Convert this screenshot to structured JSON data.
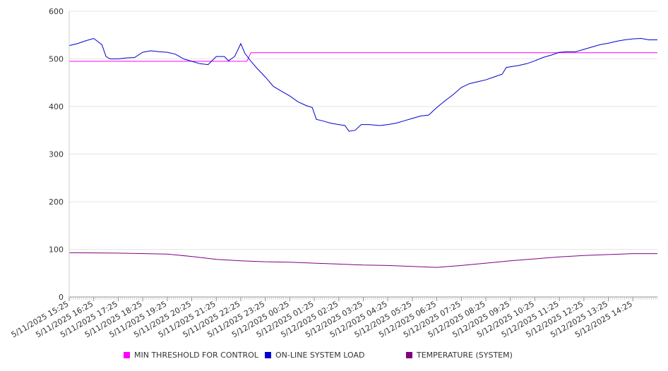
{
  "chart_data": {
    "type": "line",
    "title": "",
    "xlabel": "",
    "ylabel": "",
    "ylim": [
      0,
      600
    ],
    "y_ticks": [
      0,
      100,
      200,
      300,
      400,
      500,
      600
    ],
    "x_range": [
      "5/11/2025 15:25",
      "5/12/2025 15:25"
    ],
    "grid": true,
    "legend_position": "bottom",
    "x_tick_labels": [
      "5/11/2025 15:25",
      "5/11/2025 16:25",
      "5/11/2025 17:25",
      "5/11/2025 18:25",
      "5/11/2025 19:25",
      "5/11/2025 20:25",
      "5/11/2025 21:25",
      "5/11/2025 22:25",
      "5/11/2025 23:25",
      "5/12/2025 00:25",
      "5/12/2025 01:25",
      "5/12/2025 02:25",
      "5/12/2025 03:25",
      "5/12/2025 04:25",
      "5/12/2025 05:25",
      "5/12/2025 06:25",
      "5/12/2025 07:25",
      "5/12/2025 08:25",
      "5/12/2025 09:25",
      "5/12/2025 10:25",
      "5/12/2025 11:25",
      "5/12/2025 12:25",
      "5/12/2025 13:25",
      "5/12/2025 14:25"
    ],
    "series": [
      {
        "name": "MIN THRESHOLD FOR CONTROL",
        "color": "#ff00ff",
        "points": [
          [
            "5/11/2025 15:25",
            495
          ],
          [
            "5/11/2025 22:40",
            495
          ],
          [
            "5/11/2025 22:50",
            513
          ],
          [
            "5/12/2025 15:25",
            513
          ]
        ]
      },
      {
        "name": "ON-LINE SYSTEM LOAD",
        "color": "#0000cc",
        "points": [
          [
            "5/11/2025 15:25",
            528
          ],
          [
            "5/11/2025 15:45",
            532
          ],
          [
            "5/11/2025 16:05",
            538
          ],
          [
            "5/11/2025 16:25",
            543
          ],
          [
            "5/11/2025 16:45",
            530
          ],
          [
            "5/11/2025 16:55",
            505
          ],
          [
            "5/11/2025 17:05",
            500
          ],
          [
            "5/11/2025 17:25",
            500
          ],
          [
            "5/11/2025 17:45",
            502
          ],
          [
            "5/11/2025 18:05",
            503
          ],
          [
            "5/11/2025 18:25",
            514
          ],
          [
            "5/11/2025 18:45",
            517
          ],
          [
            "5/11/2025 19:05",
            515
          ],
          [
            "5/11/2025 19:25",
            514
          ],
          [
            "5/11/2025 19:45",
            510
          ],
          [
            "5/11/2025 20:05",
            500
          ],
          [
            "5/11/2025 20:25",
            495
          ],
          [
            "5/11/2025 20:45",
            490
          ],
          [
            "5/11/2025 21:05",
            488
          ],
          [
            "5/11/2025 21:25",
            505
          ],
          [
            "5/11/2025 21:45",
            505
          ],
          [
            "5/11/2025 21:55",
            496
          ],
          [
            "5/11/2025 22:10",
            505
          ],
          [
            "5/11/2025 22:25",
            532
          ],
          [
            "5/11/2025 22:35",
            512
          ],
          [
            "5/11/2025 22:50",
            495
          ],
          [
            "5/11/2025 23:05",
            480
          ],
          [
            "5/11/2025 23:25",
            462
          ],
          [
            "5/11/2025 23:45",
            442
          ],
          [
            "5/12/2025 00:05",
            432
          ],
          [
            "5/12/2025 00:25",
            422
          ],
          [
            "5/12/2025 00:45",
            410
          ],
          [
            "5/12/2025 01:05",
            402
          ],
          [
            "5/12/2025 01:20",
            398
          ],
          [
            "5/12/2025 01:30",
            373
          ],
          [
            "5/12/2025 01:45",
            370
          ],
          [
            "5/12/2025 02:05",
            365
          ],
          [
            "5/12/2025 02:25",
            362
          ],
          [
            "5/12/2025 02:40",
            360
          ],
          [
            "5/12/2025 02:50",
            348
          ],
          [
            "5/12/2025 03:05",
            350
          ],
          [
            "5/12/2025 03:20",
            362
          ],
          [
            "5/12/2025 03:40",
            362
          ],
          [
            "5/12/2025 04:05",
            360
          ],
          [
            "5/12/2025 04:25",
            362
          ],
          [
            "5/12/2025 04:45",
            365
          ],
          [
            "5/12/2025 05:05",
            370
          ],
          [
            "5/12/2025 05:25",
            375
          ],
          [
            "5/12/2025 05:45",
            380
          ],
          [
            "5/12/2025 06:05",
            382
          ],
          [
            "5/12/2025 06:25",
            398
          ],
          [
            "5/12/2025 06:45",
            412
          ],
          [
            "5/12/2025 07:05",
            425
          ],
          [
            "5/12/2025 07:25",
            440
          ],
          [
            "5/12/2025 07:45",
            448
          ],
          [
            "5/12/2025 08:05",
            452
          ],
          [
            "5/12/2025 08:25",
            456
          ],
          [
            "5/12/2025 08:45",
            462
          ],
          [
            "5/12/2025 09:05",
            468
          ],
          [
            "5/12/2025 09:15",
            482
          ],
          [
            "5/12/2025 09:45",
            486
          ],
          [
            "5/12/2025 10:05",
            490
          ],
          [
            "5/12/2025 10:25",
            496
          ],
          [
            "5/12/2025 10:45",
            503
          ],
          [
            "5/12/2025 11:05",
            508
          ],
          [
            "5/12/2025 11:25",
            514
          ],
          [
            "5/12/2025 11:45",
            515
          ],
          [
            "5/12/2025 12:05",
            515
          ],
          [
            "5/12/2025 12:25",
            520
          ],
          [
            "5/12/2025 12:45",
            525
          ],
          [
            "5/12/2025 13:05",
            530
          ],
          [
            "5/12/2025 13:25",
            533
          ],
          [
            "5/12/2025 13:45",
            537
          ],
          [
            "5/12/2025 14:05",
            540
          ],
          [
            "5/12/2025 14:25",
            542
          ],
          [
            "5/12/2025 14:45",
            543
          ],
          [
            "5/12/2025 15:05",
            540
          ],
          [
            "5/12/2025 15:25",
            540
          ]
        ]
      },
      {
        "name": "TEMPERATURE (SYSTEM)",
        "color": "#800080",
        "points": [
          [
            "5/11/2025 15:25",
            93
          ],
          [
            "5/11/2025 17:25",
            92
          ],
          [
            "5/11/2025 19:25",
            90
          ],
          [
            "5/11/2025 20:25",
            85
          ],
          [
            "5/11/2025 21:25",
            79
          ],
          [
            "5/11/2025 22:25",
            76
          ],
          [
            "5/11/2025 23:25",
            74
          ],
          [
            "5/12/2025 00:25",
            73
          ],
          [
            "5/12/2025 01:25",
            71
          ],
          [
            "5/12/2025 02:25",
            69
          ],
          [
            "5/12/2025 03:25",
            67
          ],
          [
            "5/12/2025 04:25",
            66
          ],
          [
            "5/12/2025 05:25",
            64
          ],
          [
            "5/12/2025 06:25",
            62
          ],
          [
            "5/12/2025 07:25",
            66
          ],
          [
            "5/12/2025 08:25",
            71
          ],
          [
            "5/12/2025 09:25",
            76
          ],
          [
            "5/12/2025 10:25",
            80
          ],
          [
            "5/12/2025 11:25",
            84
          ],
          [
            "5/12/2025 12:25",
            87
          ],
          [
            "5/12/2025 13:25",
            89
          ],
          [
            "5/12/2025 14:25",
            91
          ],
          [
            "5/12/2025 15:25",
            91
          ]
        ]
      }
    ]
  }
}
